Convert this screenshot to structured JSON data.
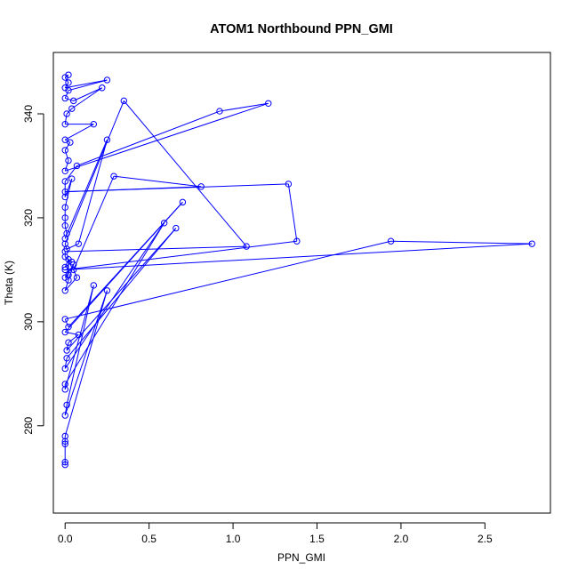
{
  "chart_data": {
    "type": "line",
    "title": "ATOM1 Northbound PPN_GMI",
    "xlabel": "PPN_GMI",
    "ylabel": "Theta (K)",
    "xlim": [
      -0.07,
      2.89
    ],
    "ylim": [
      263.2,
      351.8
    ],
    "xticks": [
      0,
      0.5,
      1,
      1.5,
      2,
      2.5
    ],
    "xtick_labels": [
      "0.0",
      "0.5",
      "1.0",
      "1.5",
      "2.0",
      "2.5"
    ],
    "yticks": [
      280,
      300,
      320,
      340
    ],
    "ytick_labels": [
      "280",
      "300",
      "320",
      "340"
    ],
    "grid": false,
    "color": "#0000ff",
    "marker": "open-circle",
    "series": [
      {
        "points": [
          [
            0.0,
            272.5
          ],
          [
            0.0,
            273.0
          ],
          [
            0.0,
            276.5
          ],
          [
            0.0,
            277.0
          ],
          [
            0.0,
            278.0
          ],
          [
            0.25,
            306.0
          ],
          [
            0.0,
            282.0
          ],
          [
            0.01,
            284.0
          ],
          [
            0.17,
            307.0
          ],
          [
            0.0,
            287.0
          ],
          [
            0.0,
            288.0
          ],
          [
            0.59,
            319.0
          ],
          [
            0.0,
            291.0
          ],
          [
            0.01,
            293.0
          ],
          [
            0.66,
            318.0
          ],
          [
            0.01,
            294.5
          ],
          [
            0.02,
            296.0
          ],
          [
            0.08,
            297.5
          ],
          [
            0.0,
            298.0
          ],
          [
            0.7,
            323.0
          ],
          [
            0.02,
            299.0
          ],
          [
            0.0,
            300.5
          ],
          [
            1.94,
            315.5
          ],
          [
            2.78,
            315.0
          ],
          [
            0.0,
            310.0
          ],
          [
            1.38,
            315.5
          ],
          [
            1.33,
            326.5
          ],
          [
            0.0,
            325.0
          ],
          [
            0.81,
            326.0
          ],
          [
            0.29,
            328.0
          ],
          [
            0.05,
            310.0
          ],
          [
            0.07,
            308.5
          ],
          [
            0.0,
            306.0
          ],
          [
            0.02,
            308.0
          ],
          [
            0.05,
            311.0
          ],
          [
            0.0,
            308.5
          ],
          [
            0.02,
            309.0
          ],
          [
            0.02,
            312.0
          ],
          [
            0.0,
            310.5
          ],
          [
            0.04,
            311.5
          ],
          [
            0.0,
            312.5
          ],
          [
            0.0,
            313.5
          ],
          [
            1.08,
            314.5
          ],
          [
            0.35,
            342.5
          ],
          [
            0.0,
            315.0
          ],
          [
            0.01,
            314.0
          ],
          [
            0.08,
            315.0
          ],
          [
            0.25,
            335.0
          ],
          [
            0.0,
            316.0
          ],
          [
            0.01,
            317.0
          ],
          [
            0.0,
            318.5
          ],
          [
            0.0,
            320.0
          ],
          [
            0.0,
            322.0
          ],
          [
            0.04,
            327.5
          ],
          [
            0.0,
            324.0
          ],
          [
            0.0,
            327.0
          ],
          [
            0.07,
            330.0
          ],
          [
            0.92,
            340.5
          ],
          [
            1.21,
            342.0
          ],
          [
            0.0,
            329.0
          ],
          [
            0.02,
            331.0
          ],
          [
            0.0,
            333.0
          ],
          [
            0.03,
            334.5
          ],
          [
            0.0,
            335.0
          ],
          [
            0.17,
            338.0
          ],
          [
            0.0,
            338.0
          ],
          [
            0.01,
            340.0
          ],
          [
            0.04,
            341.0
          ],
          [
            0.22,
            345.0
          ],
          [
            0.05,
            342.5
          ],
          [
            0.0,
            343.0
          ],
          [
            0.02,
            344.5
          ],
          [
            0.25,
            346.5
          ],
          [
            0.0,
            345.0
          ],
          [
            0.02,
            346.0
          ],
          [
            0.0,
            347.0
          ],
          [
            0.02,
            347.5
          ]
        ]
      }
    ]
  }
}
